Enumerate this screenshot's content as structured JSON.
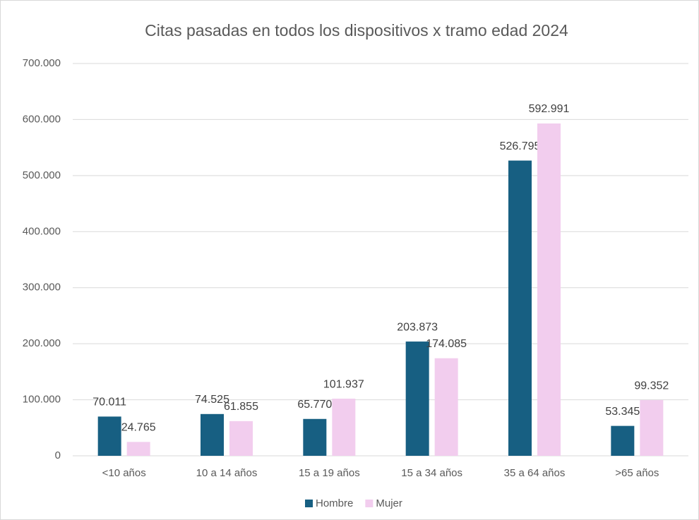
{
  "chart_data": {
    "type": "bar",
    "title": "Citas pasadas en todos los dispositivos x tramo edad 2024",
    "categories": [
      "<10 años",
      "10 a 14 años",
      "15 a 19 años",
      "15 a 34 años",
      "35 a 64 años",
      ">65 años"
    ],
    "series": [
      {
        "name": "Hombre",
        "color": "#175f82",
        "values": [
          70011,
          74525,
          65770,
          203873,
          526795,
          53345
        ],
        "value_labels": [
          "70.011",
          "74.525",
          "65.770",
          "203.873",
          "526.795",
          "53.345"
        ]
      },
      {
        "name": "Mujer",
        "color": "#f2cdee",
        "values": [
          24765,
          61855,
          101937,
          174085,
          592991,
          99352
        ],
        "value_labels": [
          "24.765",
          "61.855",
          "101.937",
          "174.085",
          "592.991",
          "99.352"
        ]
      }
    ],
    "ylim": [
      0,
      700000
    ],
    "yticks": [
      0,
      {
        "value": 100000,
        "label": "100.000"
      },
      {
        "value": 200000,
        "label": "200.000"
      },
      {
        "value": 300000,
        "label": "300.000"
      },
      {
        "value": 400000,
        "label": "400.000"
      },
      {
        "value": 500000,
        "label": "500.000"
      },
      {
        "value": 600000,
        "label": "600.000"
      },
      {
        "value": 700000,
        "label": "700.000"
      }
    ],
    "grid": true,
    "legend": "bottom"
  }
}
